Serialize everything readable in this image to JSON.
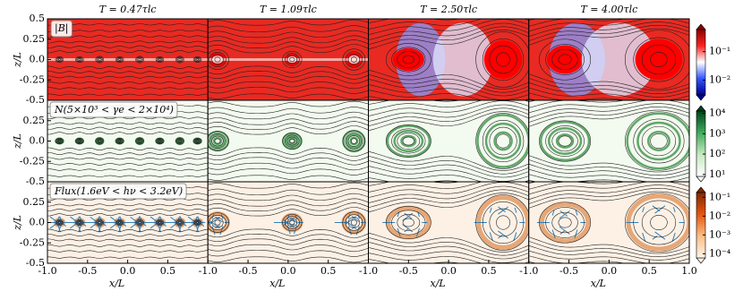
{
  "chart_data": {
    "type": "heatmap",
    "columns": [
      {
        "title": "T = 0.47τlc",
        "xlabel": "x/L",
        "xlim": [
          -1,
          1
        ],
        "xticks": [
          {
            "value": -1,
            "label": "-1.0"
          },
          -0.5,
          {
            "value": 0,
            "label": "0.0"
          },
          0.5
        ]
      },
      {
        "title": "T = 1.09τlc",
        "xlabel": "x/L",
        "xlim": [
          -1,
          1
        ],
        "xticks": [
          {
            "value": -1,
            "label": "-1.0"
          },
          -0.5,
          {
            "value": 0,
            "label": "0.0"
          },
          0.5
        ]
      },
      {
        "title": "T = 2.50τlc",
        "xlabel": "x/L",
        "xlim": [
          -1,
          1
        ],
        "xticks": [
          {
            "value": -1,
            "label": "-1.0"
          },
          -0.5,
          {
            "value": 0,
            "label": "0.0"
          },
          0.5
        ]
      },
      {
        "title": "T = 4.00τlc",
        "xlabel": "x/L",
        "xlim": [
          -1,
          1
        ],
        "xticks": [
          {
            "value": -1,
            "label": "-1.0"
          },
          -0.5,
          {
            "value": 0,
            "label": "0.0"
          },
          0.5,
          {
            "value": 1,
            "label": "1.0"
          }
        ]
      }
    ],
    "rows": [
      {
        "label": "|B|",
        "ylabel": "z/L",
        "ylim": [
          -0.5,
          0.5
        ],
        "yticks": [
          0.5,
          0.25,
          {
            "value": 0,
            "label": "0.0"
          },
          -0.25,
          -0.5
        ],
        "colorbar": {
          "scale": "log",
          "lim": [
            0.003,
            0.6
          ],
          "colors": [
            "#00008b",
            "#3355ff",
            "#ffffff",
            "#ff2222",
            "#8b0000"
          ],
          "ticks": [
            {
              "value": 0.1,
              "label": "10⁻¹"
            },
            {
              "value": 0.01,
              "label": "10⁻²"
            }
          ]
        }
      },
      {
        "label": "N(5×10³ < γe < 2×10⁴)",
        "ylabel": "z/L",
        "ylim": [
          -0.5,
          0.5
        ],
        "yticks": [
          0.25,
          {
            "value": 0,
            "label": "0.0"
          },
          -0.25,
          -0.5
        ],
        "colorbar": {
          "scale": "log",
          "lim": [
            8,
            13000
          ],
          "colors": [
            "#ffffff",
            "#c7e9c0",
            "#41ab5d",
            "#00441b"
          ],
          "ticks": [
            {
              "value": 10000,
              "label": "10⁴"
            },
            {
              "value": 1000,
              "label": "10³"
            },
            {
              "value": 100,
              "label": "10²"
            },
            {
              "value": 10,
              "label": "10¹"
            }
          ]
        }
      },
      {
        "label": "Flux(1.6eV < hν < 3.2eV)",
        "ylabel": "z/L",
        "ylim": [
          -0.5,
          0.5
        ],
        "yticks": [
          0.25,
          {
            "value": 0,
            "label": "0.0"
          },
          -0.25,
          -0.5
        ],
        "colorbar": {
          "scale": "log",
          "lim": [
            6e-05,
            0.18
          ],
          "colors": [
            "#fff5eb",
            "#fdbe85",
            "#e6550d",
            "#7f2704"
          ],
          "ticks": [
            {
              "value": 0.1,
              "label": "10⁻¹"
            },
            {
              "value": 0.01,
              "label": "10⁻²"
            },
            {
              "value": 0.001,
              "label": "10⁻³"
            },
            {
              "value": 0.0001,
              "label": "10⁻⁴"
            }
          ]
        }
      }
    ]
  }
}
